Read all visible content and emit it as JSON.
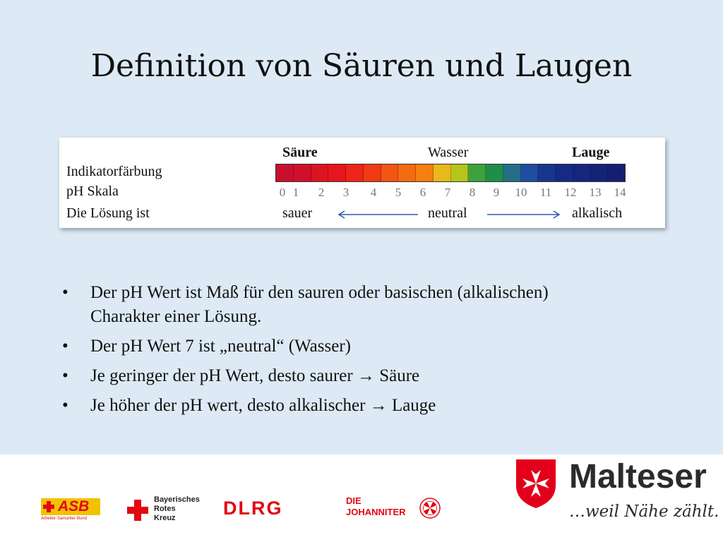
{
  "slide": {
    "title": "Definition von Säuren und Laugen"
  },
  "ph_table": {
    "headers": {
      "acid": "Säure",
      "water": "Wasser",
      "base": "Lauge"
    },
    "row_labels": [
      "Indikatorfärbung",
      "pH Skala",
      "Die Lösung ist"
    ],
    "scale": [
      "0",
      "1",
      "2",
      "3",
      "4",
      "5",
      "6",
      "7",
      "8",
      "9",
      "10",
      "11",
      "12",
      "13",
      "14"
    ],
    "segment_colors": [
      "#c8102e",
      "#d0102a",
      "#dc1422",
      "#e8151c",
      "#ee2418",
      "#f03a14",
      "#f25512",
      "#f46b10",
      "#f77f10",
      "#e7b91a",
      "#b5c51e",
      "#3da23b",
      "#1e8e48",
      "#256e88",
      "#1d4ea0",
      "#17378f",
      "#142a85",
      "#14267d",
      "#142378",
      "#141f72"
    ],
    "status": {
      "acid": "sauer",
      "neutral": "neutral",
      "base": "alkalisch"
    }
  },
  "bullets": [
    "Der pH Wert ist Maß für den sauren oder basischen (alkalischen) Charakter einer Lösung.",
    "Der pH Wert 7 ist „neutral“ (Wasser)",
    "Je geringer der pH Wert, desto saurer → Säure",
    "Je höher der pH wert, desto alkalischer → Lauge"
  ],
  "footer": {
    "asb": {
      "name": "ASB",
      "sub": "Arbeiter-Samariter-Bund"
    },
    "brk": {
      "line1": "Bayerisches",
      "line2": "Rotes",
      "line3": "Kreuz"
    },
    "dlrg": "DLRG",
    "johanniter": {
      "line1": "DIE",
      "line2": "JOHANNITER"
    },
    "malteser": {
      "name": "Malteser",
      "slogan": "…weil Nähe zählt."
    }
  },
  "colors": {
    "background": "#ddeaf5",
    "malteser_red": "#e2001a",
    "dlrg_red": "#e30613"
  }
}
